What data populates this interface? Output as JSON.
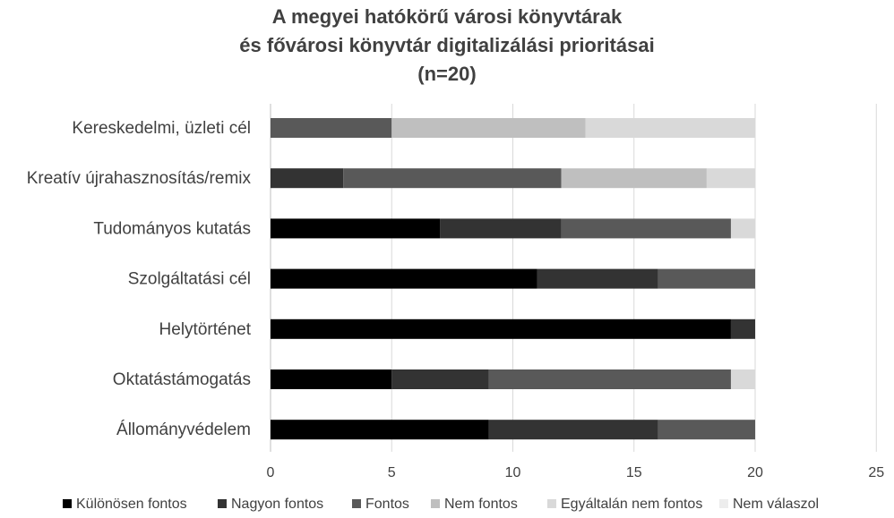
{
  "chart_data": {
    "type": "bar",
    "orientation": "horizontal",
    "stacked": true,
    "title_lines": [
      "A megyei hatókörű városi könyvtárak",
      "és fővárosi könyvtár digitalizálási prioritásai",
      "(n=20)"
    ],
    "categories": [
      "Kereskedelmi, üzleti cél",
      "Kreatív újrahasznosítás/remix",
      "Tudományos kutatás",
      "Szolgáltatási cél",
      "Helytörténet",
      "Oktatástámogatás",
      "Állományvédelem"
    ],
    "series": [
      {
        "name": "Különösen fontos",
        "color": "#000000",
        "values": [
          0,
          0,
          7,
          11,
          19,
          5,
          9
        ]
      },
      {
        "name": "Nagyon fontos",
        "color": "#333333",
        "values": [
          0,
          3,
          5,
          5,
          1,
          4,
          7
        ]
      },
      {
        "name": "Fontos",
        "color": "#595959",
        "values": [
          5,
          9,
          7,
          4,
          0,
          10,
          4
        ]
      },
      {
        "name": "Nem fontos",
        "color": "#bfbfbf",
        "values": [
          8,
          6,
          0,
          0,
          0,
          0,
          0
        ]
      },
      {
        "name": "Egyáltalán nem fontos",
        "color": "#d9d9d9",
        "values": [
          7,
          2,
          1,
          0,
          0,
          1,
          0
        ]
      },
      {
        "name": "Nem válaszol",
        "color": "#ededed",
        "values": [
          0,
          0,
          0,
          0,
          0,
          0,
          0
        ]
      }
    ],
    "xlim": [
      0,
      25
    ],
    "xticks": [
      0,
      5,
      10,
      15,
      20,
      25
    ],
    "gridlines": true,
    "legend_position": "bottom"
  }
}
